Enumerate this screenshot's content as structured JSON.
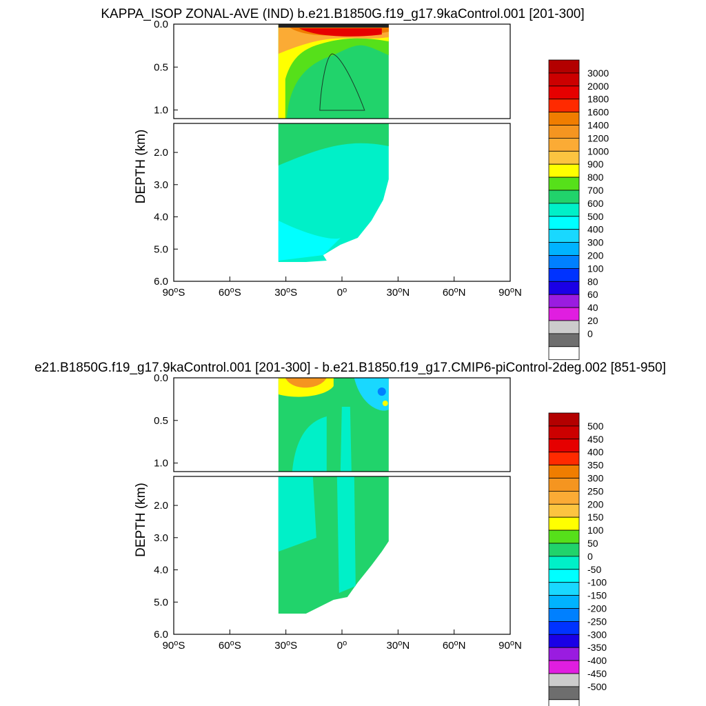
{
  "chart_data": [
    {
      "type": "heatmap",
      "title": "KAPPA_ISOP ZONAL-AVE (IND) b.e21.B1850G.f19_g17.9kaControl.001 [201-300]",
      "ylabel": "DEPTH (km)",
      "xlabel": "",
      "x_ticks": [
        {
          "value": -90,
          "text": "90°S"
        },
        {
          "value": -60,
          "text": "60°S"
        },
        {
          "value": -30,
          "text": "30°S"
        },
        {
          "value": 0,
          "text": "0°"
        },
        {
          "value": 30,
          "text": "30°N"
        },
        {
          "value": 60,
          "text": "60°N"
        },
        {
          "value": 90,
          "text": "90°N"
        }
      ],
      "xlim": [
        -90,
        90
      ],
      "y_ticks_top": [
        "0.0",
        "0.5",
        "1.0"
      ],
      "y_ticks_bottom": [
        "2.0",
        "3.0",
        "4.0",
        "5.0",
        "6.0"
      ],
      "ylim_top": [
        0.0,
        1.1
      ],
      "ylim_bottom": [
        1.1,
        6.0
      ],
      "data_extent": {
        "lat_min": -34,
        "lat_max": 25
      },
      "colorbar": {
        "labels": [
          "3000",
          "2000",
          "1800",
          "1600",
          "1400",
          "1200",
          "1000",
          "900",
          "800",
          "700",
          "600",
          "500",
          "400",
          "300",
          "200",
          "100",
          "80",
          "60",
          "40",
          "20",
          "0"
        ],
        "colors": [
          "#b30000",
          "#cc0000",
          "#e60000",
          "#ff2a00",
          "#f07d00",
          "#f59520",
          "#fbab35",
          "#fcc440",
          "#ffff00",
          "#56e01a",
          "#21d36b",
          "#00f0c8",
          "#00ffff",
          "#19d8ff",
          "#00b3ff",
          "#0080ff",
          "#0033ff",
          "#1a00e6",
          "#9a1ce0",
          "#e01ee0",
          "#cccccc",
          "#6e6e6e",
          "#ffffff"
        ]
      }
    },
    {
      "type": "heatmap",
      "title": "e21.B1850G.f19_g17.9kaControl.001 [201-300] - b.e21.B1850.f19_g17.CMIP6-piControl-2deg.002 [851-950]",
      "ylabel": "DEPTH (km)",
      "xlabel": "",
      "x_ticks": [
        {
          "value": -90,
          "text": "90°S"
        },
        {
          "value": -60,
          "text": "60°S"
        },
        {
          "value": -30,
          "text": "30°S"
        },
        {
          "value": 0,
          "text": "0°"
        },
        {
          "value": 30,
          "text": "30°N"
        },
        {
          "value": 60,
          "text": "60°N"
        },
        {
          "value": 90,
          "text": "90°N"
        }
      ],
      "xlim": [
        -90,
        90
      ],
      "y_ticks_top": [
        "0.0",
        "0.5",
        "1.0"
      ],
      "y_ticks_bottom": [
        "2.0",
        "3.0",
        "4.0",
        "5.0",
        "6.0"
      ],
      "ylim_top": [
        0.0,
        1.1
      ],
      "ylim_bottom": [
        1.1,
        6.0
      ],
      "data_extent": {
        "lat_min": -34,
        "lat_max": 25
      },
      "colorbar": {
        "labels": [
          "500",
          "450",
          "400",
          "350",
          "300",
          "250",
          "200",
          "150",
          "100",
          "50",
          "0",
          "-50",
          "-100",
          "-150",
          "-200",
          "-250",
          "-300",
          "-350",
          "-400",
          "-450",
          "-500"
        ],
        "colors": [
          "#b30000",
          "#cc0000",
          "#e60000",
          "#ff2a00",
          "#f07d00",
          "#f59520",
          "#fbab35",
          "#fcc440",
          "#ffff00",
          "#56e01a",
          "#21d36b",
          "#00f0c8",
          "#00ffff",
          "#19d8ff",
          "#00b3ff",
          "#0080ff",
          "#0033ff",
          "#1a00e6",
          "#9a1ce0",
          "#e01ee0",
          "#cccccc",
          "#6e6e6e",
          "#ffffff"
        ]
      }
    }
  ]
}
